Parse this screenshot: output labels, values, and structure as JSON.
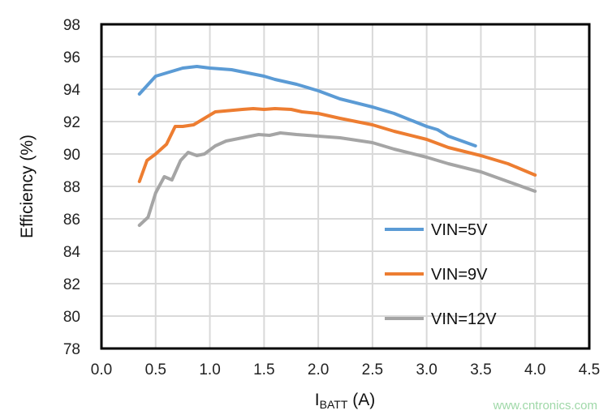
{
  "chart_data": {
    "type": "line",
    "xlabel": "I",
    "xlabel_sub": "BATT",
    "xlabel_unit": " (A)",
    "ylabel": "Efficiency (%)",
    "xlim": [
      0,
      4.5
    ],
    "ylim": [
      78,
      98
    ],
    "xticks": [
      "0.0",
      "0.5",
      "1.0",
      "1.5",
      "2.0",
      "2.5",
      "3.0",
      "3.5",
      "4.0",
      "4.5"
    ],
    "yticks": [
      "78",
      "80",
      "82",
      "84",
      "86",
      "88",
      "90",
      "92",
      "94",
      "96",
      "98"
    ],
    "grid": true,
    "legend_position": "right-center",
    "series": [
      {
        "name": "VIN=5V",
        "color": "#5b9bd5",
        "points": [
          [
            0.35,
            93.7
          ],
          [
            0.5,
            94.8
          ],
          [
            0.6,
            95.0
          ],
          [
            0.75,
            95.3
          ],
          [
            0.88,
            95.4
          ],
          [
            1.0,
            95.3
          ],
          [
            1.2,
            95.2
          ],
          [
            1.5,
            94.8
          ],
          [
            1.6,
            94.6
          ],
          [
            1.8,
            94.3
          ],
          [
            2.0,
            93.9
          ],
          [
            2.2,
            93.4
          ],
          [
            2.5,
            92.9
          ],
          [
            2.7,
            92.5
          ],
          [
            3.0,
            91.7
          ],
          [
            3.1,
            91.5
          ],
          [
            3.2,
            91.1
          ],
          [
            3.45,
            90.5
          ]
        ]
      },
      {
        "name": "VIN=9V",
        "color": "#ed7d31",
        "points": [
          [
            0.35,
            88.3
          ],
          [
            0.42,
            89.6
          ],
          [
            0.5,
            90.0
          ],
          [
            0.6,
            90.6
          ],
          [
            0.68,
            91.7
          ],
          [
            0.75,
            91.7
          ],
          [
            0.85,
            91.8
          ],
          [
            0.95,
            92.2
          ],
          [
            1.05,
            92.6
          ],
          [
            1.3,
            92.75
          ],
          [
            1.4,
            92.8
          ],
          [
            1.5,
            92.75
          ],
          [
            1.6,
            92.8
          ],
          [
            1.75,
            92.75
          ],
          [
            1.85,
            92.6
          ],
          [
            2.0,
            92.5
          ],
          [
            2.2,
            92.2
          ],
          [
            2.5,
            91.8
          ],
          [
            2.7,
            91.4
          ],
          [
            3.0,
            90.9
          ],
          [
            3.2,
            90.4
          ],
          [
            3.5,
            89.9
          ],
          [
            3.75,
            89.4
          ],
          [
            4.0,
            88.7
          ]
        ]
      },
      {
        "name": "VIN=12V",
        "color": "#a5a5a5",
        "points": [
          [
            0.35,
            85.6
          ],
          [
            0.43,
            86.1
          ],
          [
            0.5,
            87.6
          ],
          [
            0.58,
            88.6
          ],
          [
            0.65,
            88.4
          ],
          [
            0.73,
            89.6
          ],
          [
            0.8,
            90.1
          ],
          [
            0.88,
            89.9
          ],
          [
            0.95,
            90.0
          ],
          [
            1.05,
            90.5
          ],
          [
            1.15,
            90.8
          ],
          [
            1.3,
            91.0
          ],
          [
            1.45,
            91.2
          ],
          [
            1.55,
            91.15
          ],
          [
            1.65,
            91.3
          ],
          [
            1.8,
            91.2
          ],
          [
            2.0,
            91.1
          ],
          [
            2.2,
            91.0
          ],
          [
            2.5,
            90.7
          ],
          [
            2.7,
            90.3
          ],
          [
            3.0,
            89.8
          ],
          [
            3.2,
            89.4
          ],
          [
            3.5,
            88.9
          ],
          [
            3.75,
            88.3
          ],
          [
            4.0,
            87.7
          ]
        ]
      }
    ]
  },
  "watermark": "www.cntronics.com"
}
